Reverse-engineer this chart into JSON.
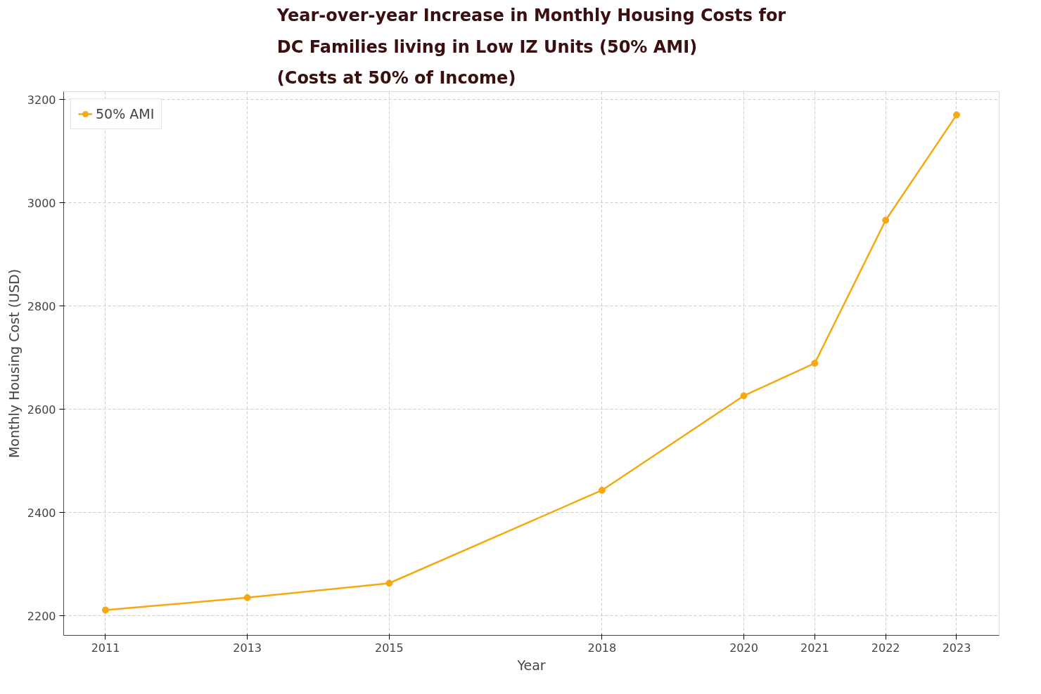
{
  "chart_data": {
    "type": "line",
    "title": "Year-over-year Increase in Monthly Housing Costs for\nDC Families living in Low IZ Units (50% AMI)\n(Costs at 50% of Income)",
    "xlabel": "Year",
    "ylabel": "Monthly Housing Cost (USD)",
    "x": [
      2011,
      2013,
      2015,
      2018,
      2020,
      2021,
      2022,
      2023
    ],
    "series": [
      {
        "name": "50% AMI",
        "color": "#f5a80f",
        "values": [
          2211,
          2235,
          2263,
          2443,
          2626,
          2689,
          2966,
          3170
        ]
      }
    ],
    "xlim": [
      2010.41,
      2023.6
    ],
    "xticks": [
      2011,
      2013,
      2015,
      2018,
      2020,
      2021,
      2022,
      2023
    ],
    "ylim": [
      2162,
      3215
    ],
    "yticks": [
      2200,
      2400,
      2600,
      2800,
      3000,
      3200
    ],
    "grid": true,
    "legend": "top left",
    "marker": "circle",
    "line_style": "solid"
  }
}
